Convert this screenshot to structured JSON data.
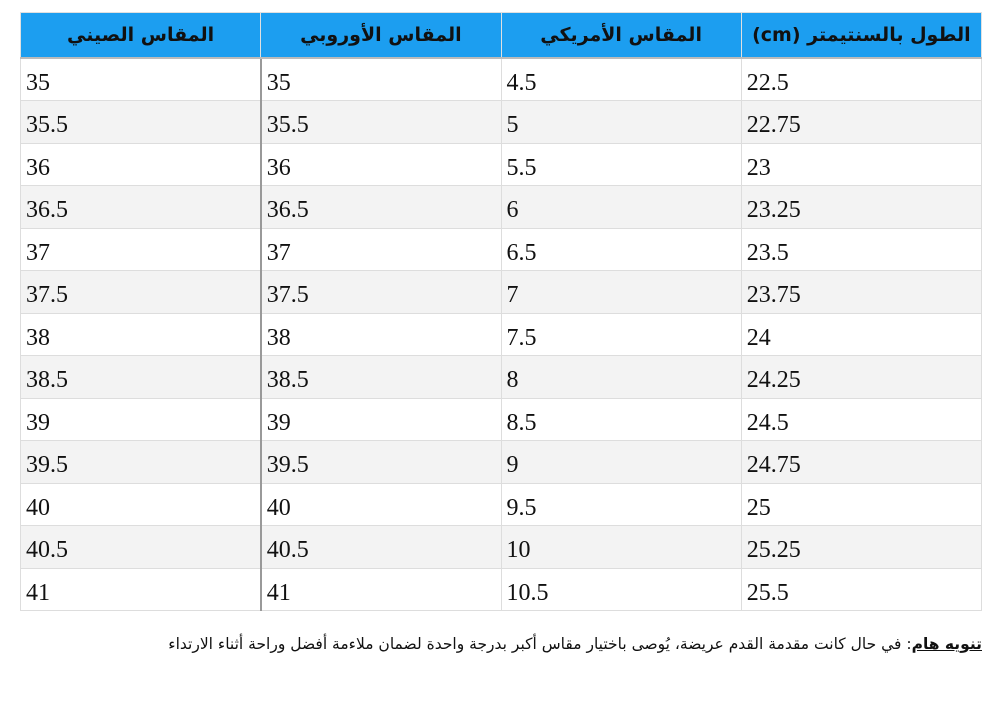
{
  "table": {
    "headers": [
      "المقاس الصيني",
      "المقاس الأوروبي",
      "المقاس الأمريكي",
      "الطول بالسنتيمتر (cm)"
    ],
    "rows": [
      [
        "35",
        "35",
        "4.5",
        "22.5"
      ],
      [
        "35.5",
        "35.5",
        "5",
        "22.75"
      ],
      [
        "36",
        "36",
        "5.5",
        "23"
      ],
      [
        "36.5",
        "36.5",
        "6",
        "23.25"
      ],
      [
        "37",
        "37",
        "6.5",
        "23.5"
      ],
      [
        "37.5",
        "37.5",
        "7",
        "23.75"
      ],
      [
        "38",
        "38",
        "7.5",
        "24"
      ],
      [
        "38.5",
        "38.5",
        "8",
        "24.25"
      ],
      [
        "39",
        "39",
        "8.5",
        "24.5"
      ],
      [
        "39.5",
        "39.5",
        "9",
        "24.75"
      ],
      [
        "40",
        "40",
        "9.5",
        "25"
      ],
      [
        "40.5",
        "40.5",
        "10",
        "25.25"
      ],
      [
        "41",
        "41",
        "10.5",
        "25.5"
      ]
    ]
  },
  "note": {
    "label": "تنويه هام",
    "text": ": في حال كانت مقدمة القدم عريضة، يُوصى باختيار مقاس أكبر بدرجة واحدة لضمان ملاءمة أفضل وراحة أثناء الارتداء"
  },
  "colors": {
    "header_bg": "#1c9ef0",
    "alt_row_bg": "#f3f3f3"
  }
}
